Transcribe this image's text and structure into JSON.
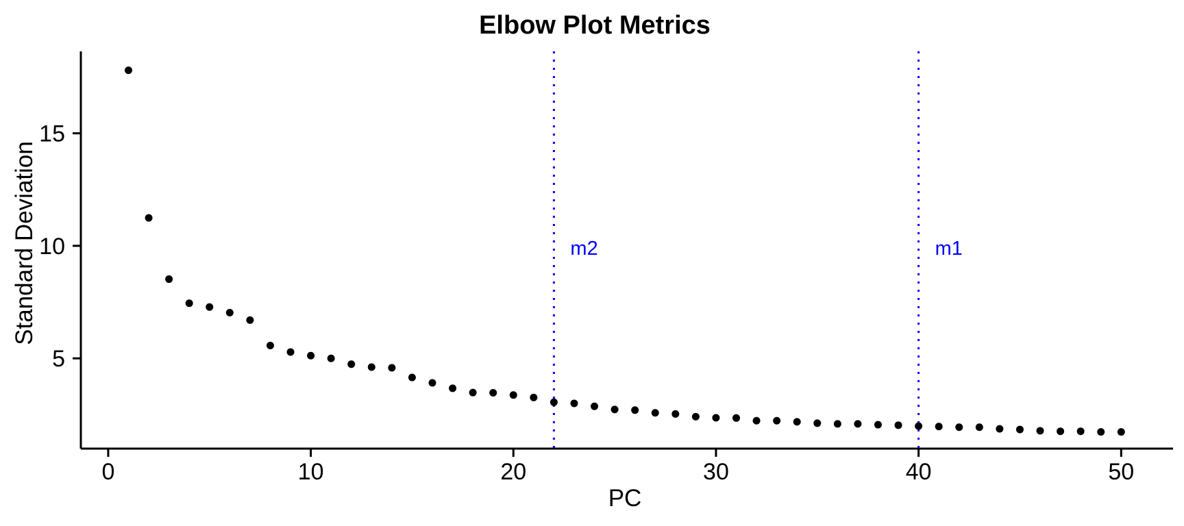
{
  "page": {
    "background": "#FFFFFF"
  },
  "chart_data": {
    "type": "scatter",
    "title": "Elbow Plot Metrics",
    "xlabel": "PC",
    "ylabel": "Standard Deviation",
    "x": [
      1,
      2,
      3,
      4,
      5,
      6,
      7,
      8,
      9,
      10,
      11,
      12,
      13,
      14,
      15,
      16,
      17,
      18,
      19,
      20,
      21,
      22,
      23,
      24,
      25,
      26,
      27,
      28,
      29,
      30,
      31,
      32,
      33,
      34,
      35,
      36,
      37,
      38,
      39,
      40,
      41,
      42,
      43,
      44,
      45,
      46,
      47,
      48,
      49,
      50
    ],
    "y": [
      17.8,
      11.24,
      8.52,
      7.45,
      7.28,
      7.03,
      6.7,
      5.57,
      5.28,
      5.12,
      5.0,
      4.74,
      4.61,
      4.58,
      4.15,
      3.91,
      3.67,
      3.48,
      3.47,
      3.37,
      3.26,
      3.05,
      3.0,
      2.87,
      2.73,
      2.7,
      2.58,
      2.53,
      2.41,
      2.36,
      2.35,
      2.23,
      2.23,
      2.18,
      2.12,
      2.09,
      2.09,
      2.05,
      2.03,
      1.99,
      1.97,
      1.94,
      1.94,
      1.87,
      1.84,
      1.78,
      1.76,
      1.76,
      1.73,
      1.73
    ],
    "xticks": [
      0,
      10,
      20,
      30,
      40,
      50
    ],
    "yticks": [
      5,
      10,
      15
    ],
    "xlim": [
      -1.35,
      52.56
    ],
    "ylim": [
      0.99,
      18.64
    ],
    "grid": false,
    "legend": "none",
    "point_color": "#000000",
    "axis_color": "#000000",
    "vlines": [
      {
        "x": 22,
        "label": "m2",
        "color": "#0000FF",
        "style": "dotted"
      },
      {
        "x": 40,
        "label": "m1",
        "color": "#0000FF",
        "style": "dotted"
      }
    ],
    "vline_label_y": 9.9
  }
}
